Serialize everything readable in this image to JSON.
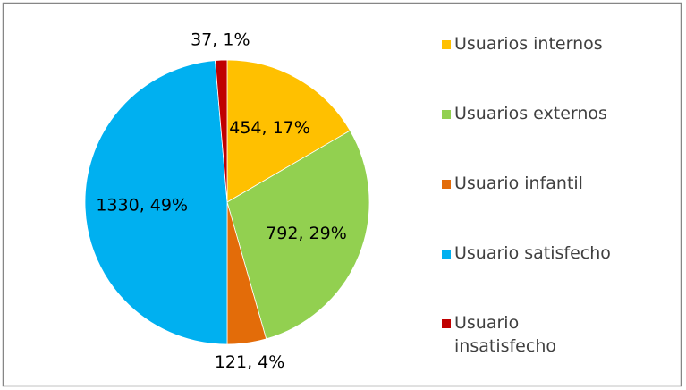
{
  "chart_data": {
    "type": "pie",
    "categories": [
      "Usuarios internos",
      "Usuarios externos",
      "Usuario infantil",
      "Usuario satisfecho",
      "Usuario insatisfecho"
    ],
    "values": [
      454,
      792,
      121,
      1330,
      37
    ],
    "value_labels": [
      "454, 17%",
      "792, 29%",
      "121, 4%",
      "1330, 49%",
      "37, 1%"
    ],
    "colors": [
      "#FFC000",
      "#92D050",
      "#E36C09",
      "#00B0F0",
      "#C00000"
    ],
    "legend": "right"
  }
}
